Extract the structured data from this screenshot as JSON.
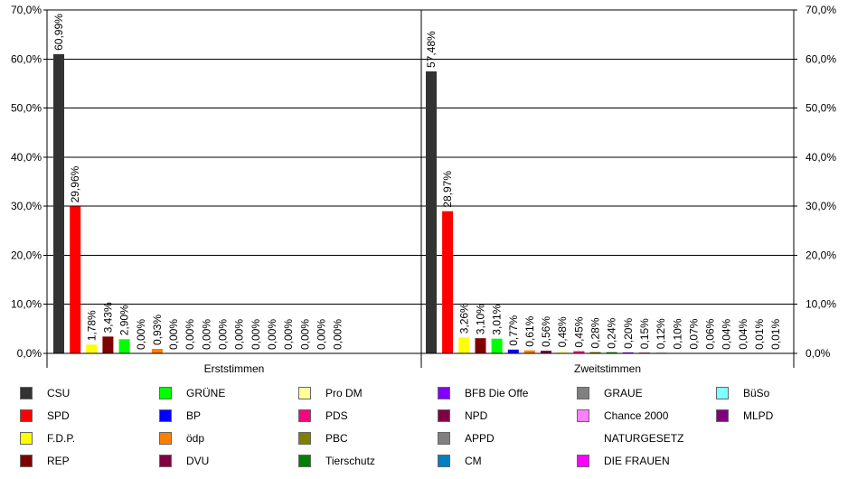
{
  "chart_data": {
    "type": "bar",
    "groups": [
      "Erststimmen",
      "Zweitstimmen"
    ],
    "ylim": [
      0,
      70
    ],
    "yticks": [
      "0,0%",
      "10,0%",
      "20,0%",
      "30,0%",
      "40,0%",
      "50,0%",
      "60,0%",
      "70,0%"
    ],
    "grid": true,
    "legend_position": "bottom",
    "parties": [
      {
        "name": "CSU",
        "color": "#333333"
      },
      {
        "name": "SPD",
        "color": "#ff0000"
      },
      {
        "name": "F.D.P.",
        "color": "#ffff00"
      },
      {
        "name": "REP",
        "color": "#800000"
      },
      {
        "name": "GRÜNE",
        "color": "#00ff00"
      },
      {
        "name": "BP",
        "color": "#0000ff"
      },
      {
        "name": "ödp",
        "color": "#ff8000"
      },
      {
        "name": "DVU",
        "color": "#800040"
      },
      {
        "name": "Pro DM",
        "color": "#ffff99"
      },
      {
        "name": "PDS",
        "color": "#ff0080"
      },
      {
        "name": "PBC",
        "color": "#808000"
      },
      {
        "name": "Tierschutz",
        "color": "#008000"
      },
      {
        "name": "BFB Die Offe",
        "color": "#8000ff"
      },
      {
        "name": "NPD",
        "color": "#800040"
      },
      {
        "name": "APPD",
        "color": "#808080"
      },
      {
        "name": "CM",
        "color": "#0080c0"
      },
      {
        "name": "GRAUE",
        "color": "#808080"
      },
      {
        "name": "Chance 2000",
        "color": "#ff80ff"
      },
      {
        "name": "NATURGESETZ",
        "color": "#ffffff"
      },
      {
        "name": "DIE FRAUEN",
        "color": "#ff00ff"
      },
      {
        "name": "BüSo",
        "color": "#80ffff"
      },
      {
        "name": "MLPD",
        "color": "#800080"
      }
    ],
    "series": [
      {
        "group": "Erststimmen",
        "values": [
          60.99,
          29.96,
          1.78,
          3.43,
          2.9,
          0.0,
          0.93,
          0.0,
          0.0,
          0.0,
          0.0,
          0.0,
          0.0,
          0.0,
          0.0,
          0.0,
          0.0,
          0.0
        ],
        "colors": [
          "#333333",
          "#ff0000",
          "#ffff00",
          "#800000",
          "#00ff00",
          "#0000ff",
          "#ff8000",
          "#800040",
          "#ffff99",
          "#ff0080",
          "#808000",
          "#008000",
          "#8000ff",
          "#800040",
          "#808080",
          "#0080c0",
          "#808080",
          "#ff80ff"
        ],
        "labels": [
          "60,99%",
          "29,96%",
          "1,78%",
          "3,43%",
          "2,90%",
          "0,00%",
          "0,93%",
          "0,00%",
          "0,00%",
          "0,00%",
          "0,00%",
          "0,00%",
          "0,00%",
          "0,00%",
          "0,00%",
          "0,00%",
          "0,00%",
          "0,00%"
        ]
      },
      {
        "group": "Zweitstimmen",
        "values": [
          57.48,
          28.97,
          3.26,
          3.1,
          3.01,
          0.77,
          0.61,
          0.56,
          0.48,
          0.45,
          0.28,
          0.24,
          0.2,
          0.15,
          0.12,
          0.1,
          0.07,
          0.06,
          0.04,
          0.04,
          0.01,
          0.01
        ],
        "colors": [
          "#333333",
          "#ff0000",
          "#ffff00",
          "#800000",
          "#00ff00",
          "#0000ff",
          "#ff8000",
          "#800040",
          "#ffff99",
          "#ff0080",
          "#808000",
          "#008000",
          "#8000ff",
          "#800040",
          "#808080",
          "#0080c0",
          "#808080",
          "#ff80ff",
          "#ffffff",
          "#ff00ff",
          "#80ffff",
          "#800080"
        ],
        "labels": [
          "57,48%",
          "28,97%",
          "3,26%",
          "3,10%",
          "3,01%",
          "0,77%",
          "0,61%",
          "0,56%",
          "0,48%",
          "0,45%",
          "0,28%",
          "0,24%",
          "0,20%",
          "0,15%",
          "0,12%",
          "0,10%",
          "0,07%",
          "0,06%",
          "0,04%",
          "0,04%",
          "0,01%",
          "0,01%"
        ]
      }
    ]
  }
}
